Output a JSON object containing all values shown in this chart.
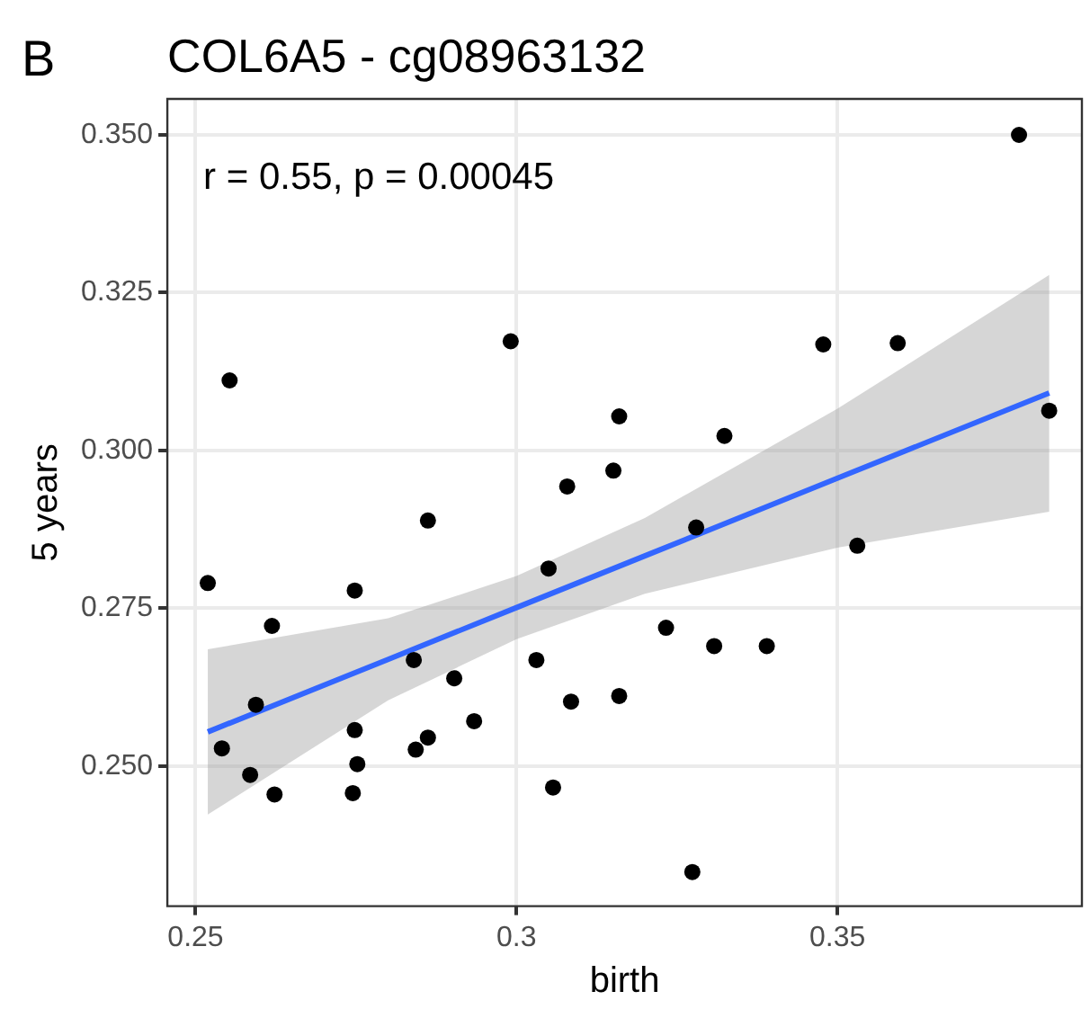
{
  "chart_data": {
    "type": "scatter",
    "title": "COL6A5 - cg08963132",
    "xlabel": "birth",
    "ylabel": "5 years",
    "annotations": [
      "B",
      "r = 0.55, p = 0.00045"
    ],
    "xlim": [
      0.2456,
      0.3881
    ],
    "xticks": [
      0.25,
      0.3,
      0.35
    ],
    "ylim": [
      0.2278,
      0.3557
    ],
    "yticks": [
      {
        "value": 0.25,
        "label": "0.250"
      },
      {
        "value": 0.275,
        "label": "0.275"
      },
      {
        "value": 0.3,
        "label": "0.300"
      },
      {
        "value": 0.325,
        "label": "0.325"
      },
      {
        "value": 0.35,
        "label": "0.350"
      }
    ],
    "grid": true,
    "legend": false,
    "series": [
      {
        "marker": "circle",
        "color": "#000000",
        "x": [
          0.2519,
          0.2553,
          0.2541,
          0.2748,
          0.2619,
          0.2862,
          0.284,
          0.2903,
          0.2934,
          0.2862,
          0.2843,
          0.2748,
          0.2752,
          0.2745,
          0.2594,
          0.2585,
          0.2623,
          0.305,
          0.3031,
          0.3085,
          0.316,
          0.3057,
          0.3079,
          0.328,
          0.3531,
          0.3233,
          0.3308,
          0.339,
          0.3274,
          0.3783,
          0.3478,
          0.3594,
          0.316,
          0.3324,
          0.3151,
          0.383,
          0.2991
        ],
        "values": [
          0.279,
          0.3111,
          0.2528,
          0.2778,
          0.2722,
          0.2889,
          0.2668,
          0.2639,
          0.2571,
          0.2545,
          0.2526,
          0.2557,
          0.2503,
          0.2457,
          0.2597,
          0.2486,
          0.2455,
          0.2813,
          0.2668,
          0.2602,
          0.2611,
          0.2466,
          0.2943,
          0.2878,
          0.2849,
          0.2719,
          0.269,
          0.269,
          0.2332,
          0.35,
          0.3168,
          0.317,
          0.3054,
          0.3023,
          0.2968,
          0.3063,
          0.3173
        ]
      },
      {
        "type": "line",
        "marker": "none",
        "color": "#3366ff",
        "x": [
          0.2519,
          0.28,
          0.3,
          0.32,
          0.35,
          0.383
        ],
        "values": [
          0.2554,
          0.2669,
          0.2751,
          0.2833,
          0.2956,
          0.3091
        ],
        "lower": [
          0.2423,
          0.2604,
          0.2701,
          0.2773,
          0.2846,
          0.2903
        ],
        "upper": [
          0.2685,
          0.2734,
          0.2801,
          0.2893,
          0.3066,
          0.3278
        ]
      }
    ]
  }
}
